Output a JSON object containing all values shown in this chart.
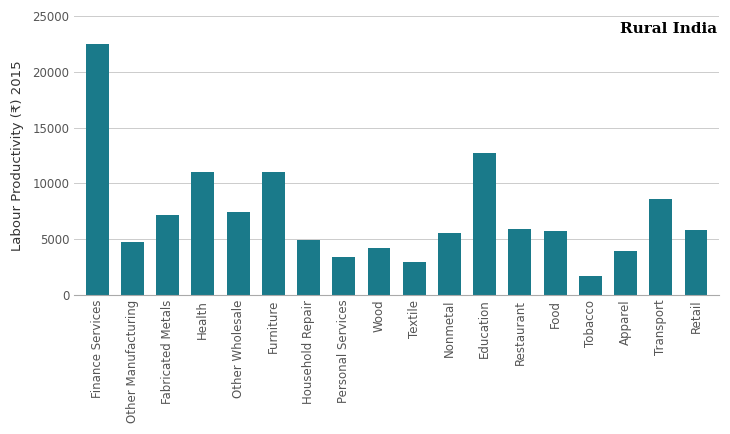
{
  "categories": [
    "Finance Services",
    "Other Manufacturing",
    "Fabricated Metals",
    "Health",
    "Other Wholesale",
    "Furniture",
    "Household Repair",
    "Personal Services",
    "Wood",
    "Textile",
    "Nonmetal",
    "Education",
    "Restaurant",
    "Food",
    "Tobacco",
    "Apparel",
    "Transport",
    "Retail"
  ],
  "values": [
    22500,
    4700,
    7200,
    11000,
    7400,
    11000,
    4900,
    3400,
    4200,
    2900,
    5500,
    12700,
    5900,
    5700,
    1700,
    3900,
    8600,
    5800
  ],
  "bar_color": "#1a7a8a",
  "ylabel": "Labour Productivity (₹) 2015",
  "legend_label": "Rural India",
  "ylim": [
    0,
    25000
  ],
  "yticks": [
    0,
    5000,
    10000,
    15000,
    20000,
    25000
  ],
  "background_color": "#ffffff",
  "grid_color": "#cccccc",
  "title_fontsize": 11,
  "tick_fontsize": 8.5,
  "ylabel_fontsize": 9.5
}
